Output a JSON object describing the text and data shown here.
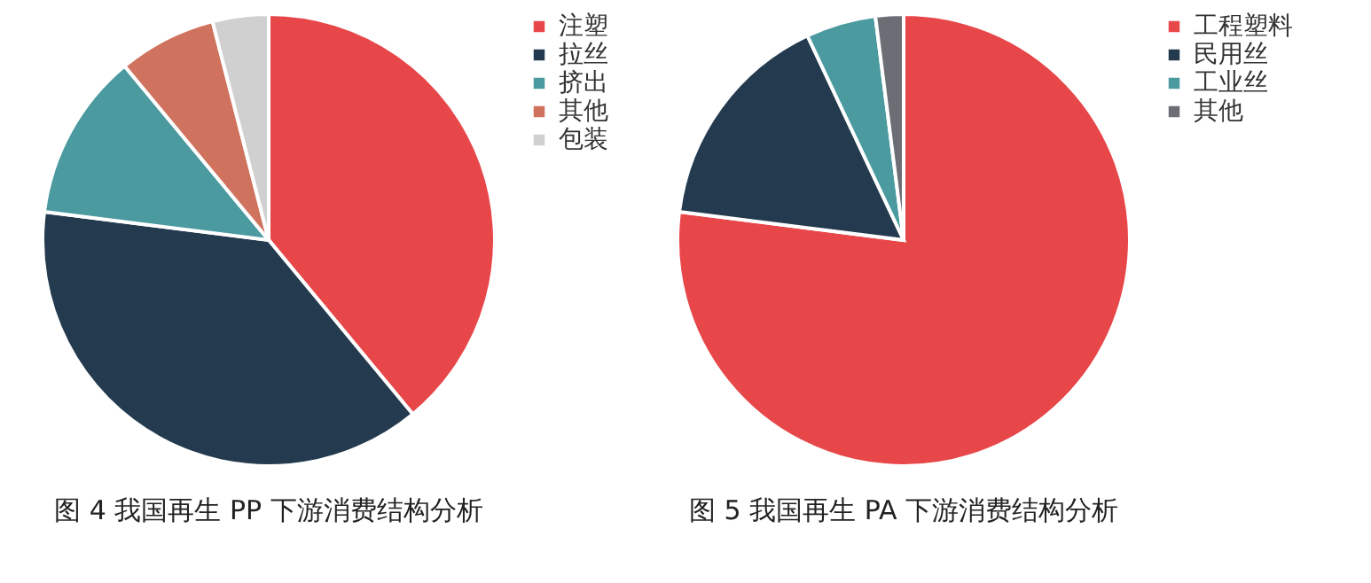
{
  "chart_data": [
    {
      "type": "pie",
      "title": "图 4  我国再生 PP 下游消费结构分析",
      "categories": [
        "注塑",
        "拉丝",
        "挤出",
        "其他",
        "包装"
      ],
      "values": [
        39,
        38,
        12,
        7,
        4
      ],
      "colors": [
        "#e8474a",
        "#243b4f",
        "#4a9aa0",
        "#cf735f",
        "#d0d0d0"
      ],
      "legend": "right"
    },
    {
      "type": "pie",
      "title": "图 5  我国再生 PA 下游消费结构分析",
      "categories": [
        "工程塑料",
        "民用丝",
        "工业丝",
        "其他"
      ],
      "values": [
        77,
        16,
        5,
        2
      ],
      "colors": [
        "#e8474a",
        "#243b4f",
        "#4a9aa0",
        "#6b6f75"
      ],
      "legend": "right"
    }
  ]
}
